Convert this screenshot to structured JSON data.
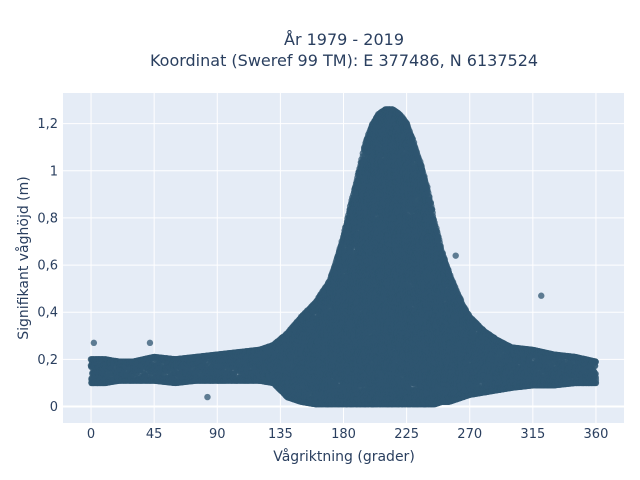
{
  "chart_data": {
    "type": "scatter",
    "title_line1": "År 1979 - 2019",
    "title_line2": "Koordinat (Sweref 99 TM): E 377486, N 6137524",
    "xlabel": "Vågriktning (grader)",
    "ylabel": "Signifikant våghöjd (m)",
    "xlim": [
      -20,
      380
    ],
    "ylim": [
      -0.07,
      1.33
    ],
    "x_ticks": [
      0,
      45,
      90,
      135,
      180,
      225,
      270,
      315,
      360
    ],
    "x_tick_labels": [
      "0",
      "45",
      "90",
      "135",
      "180",
      "225",
      "270",
      "315",
      "360"
    ],
    "y_ticks": [
      0,
      0.2,
      0.4,
      0.6,
      0.8,
      1.0,
      1.2
    ],
    "y_tick_labels": [
      "0",
      "0,2",
      "0,4",
      "0,6",
      "0,8",
      "1",
      "1,2"
    ],
    "grid": true,
    "marker_color": "#2f5670",
    "background_color": "#e5ecf6",
    "envelope": {
      "direction": [
        0,
        10,
        20,
        30,
        45,
        60,
        75,
        90,
        105,
        120,
        130,
        140,
        150,
        160,
        170,
        175,
        180,
        185,
        190,
        195,
        200,
        205,
        210,
        215,
        220,
        225,
        230,
        235,
        240,
        245,
        250,
        255,
        260,
        265,
        270,
        280,
        290,
        300,
        315,
        330,
        345,
        360
      ],
      "max_height": [
        0.2,
        0.2,
        0.19,
        0.19,
        0.21,
        0.2,
        0.21,
        0.22,
        0.23,
        0.24,
        0.26,
        0.31,
        0.38,
        0.44,
        0.53,
        0.62,
        0.72,
        0.85,
        0.97,
        1.1,
        1.19,
        1.24,
        1.26,
        1.26,
        1.24,
        1.2,
        1.12,
        1.03,
        0.92,
        0.78,
        0.66,
        0.57,
        0.5,
        0.43,
        0.38,
        0.32,
        0.28,
        0.25,
        0.24,
        0.22,
        0.21,
        0.19
      ],
      "min_height": [
        0.1,
        0.1,
        0.11,
        0.11,
        0.11,
        0.1,
        0.11,
        0.11,
        0.11,
        0.11,
        0.1,
        0.04,
        0.02,
        0.01,
        0.01,
        0.01,
        0.01,
        0.01,
        0.01,
        0.01,
        0.01,
        0.01,
        0.01,
        0.01,
        0.01,
        0.01,
        0.01,
        0.01,
        0.01,
        0.01,
        0.02,
        0.02,
        0.03,
        0.04,
        0.05,
        0.06,
        0.07,
        0.08,
        0.09,
        0.09,
        0.1,
        0.1
      ]
    },
    "outliers": [
      {
        "x": 2,
        "y": 0.27
      },
      {
        "x": 42,
        "y": 0.27
      },
      {
        "x": 321,
        "y": 0.47
      },
      {
        "x": 83,
        "y": 0.04
      },
      {
        "x": 260,
        "y": 0.64
      }
    ]
  }
}
